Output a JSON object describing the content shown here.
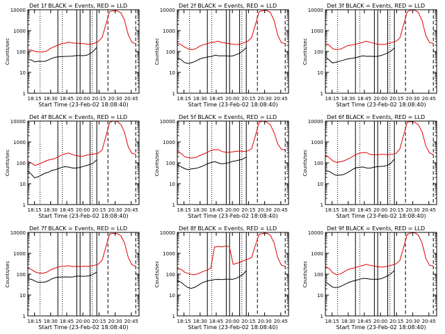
{
  "figure": {
    "start_time_label": "Start Time (23-Feb-02 18:08:40)",
    "ylabel": "Counts/sec",
    "x_ticks": [
      "18:15",
      "18:30",
      "18:45",
      "20:00",
      "20:15",
      "20:30",
      "20:45"
    ],
    "y_ticks": [
      "1",
      "10",
      "100",
      "1000",
      "10000"
    ]
  },
  "chart_data": [
    {
      "type": "line",
      "title": "Det 1f BLACK = Events, RED = LLD",
      "scale": "log",
      "ylim": [
        1,
        10000
      ],
      "series": [
        {
          "color": "#000000",
          "values": [
            40,
            38,
            30,
            34,
            35,
            36,
            40,
            45,
            50,
            55,
            60,
            62,
            60,
            58,
            60,
            62,
            65,
            70,
            80,
            100,
            150
          ]
        },
        {
          "color": "#e00000",
          "values": [
            120,
            110,
            95,
            95,
            100,
            110,
            140,
            160,
            190,
            230,
            260,
            300,
            260,
            240,
            230,
            230,
            230,
            240,
            260,
            300,
            450,
            2000,
            8500,
            9500,
            9200,
            7000,
            3000,
            600,
            280,
            250
          ]
        }
      ]
    },
    {
      "type": "line",
      "title": "Det 2f BLACK = Events, RED = LLD",
      "scale": "log",
      "ylim": [
        1,
        10000
      ],
      "series": [
        {
          "color": "#000000",
          "values": [
            45,
            40,
            30,
            28,
            30,
            33,
            38,
            45,
            50,
            58,
            62,
            68,
            60,
            58,
            60,
            62,
            65,
            72,
            80,
            100,
            150
          ]
        },
        {
          "color": "#e00000",
          "values": [
            250,
            200,
            160,
            140,
            130,
            140,
            170,
            200,
            230,
            280,
            300,
            320,
            260,
            240,
            230,
            230,
            230,
            240,
            260,
            300,
            450,
            2000,
            8500,
            9500,
            9200,
            7000,
            3000,
            600,
            280,
            250
          ]
        }
      ]
    },
    {
      "type": "line",
      "title": "Det 3f BLACK = Events, RED = LLD",
      "scale": "log",
      "ylim": [
        1,
        10000
      ],
      "series": [
        {
          "color": "#000000",
          "values": [
            50,
            40,
            30,
            32,
            34,
            36,
            40,
            45,
            50,
            55,
            60,
            60,
            55,
            58,
            60,
            62,
            65,
            70,
            80,
            100,
            150
          ]
        },
        {
          "color": "#e00000",
          "values": [
            240,
            200,
            140,
            130,
            130,
            150,
            180,
            200,
            230,
            260,
            280,
            300,
            260,
            240,
            230,
            230,
            230,
            240,
            260,
            300,
            450,
            2000,
            8500,
            9500,
            9200,
            7000,
            3000,
            600,
            280,
            250
          ]
        }
      ]
    },
    {
      "type": "line",
      "title": "Det 4f BLACK = Events, RED = LLD",
      "scale": "log",
      "ylim": [
        1,
        10000
      ],
      "series": [
        {
          "color": "#000000",
          "values": [
            40,
            30,
            20,
            22,
            25,
            30,
            35,
            45,
            50,
            55,
            60,
            62,
            60,
            58,
            60,
            62,
            65,
            70,
            80,
            100,
            150
          ]
        },
        {
          "color": "#e00000",
          "values": [
            120,
            100,
            80,
            90,
            100,
            120,
            140,
            160,
            200,
            240,
            260,
            280,
            240,
            230,
            220,
            220,
            230,
            240,
            260,
            300,
            450,
            2000,
            8500,
            9500,
            9200,
            7000,
            3000,
            600,
            280,
            250
          ]
        }
      ]
    },
    {
      "type": "line",
      "title": "Det 5f BLACK = Events, RED = LLD",
      "scale": "log",
      "ylim": [
        1,
        10000
      ],
      "series": [
        {
          "color": "#000000",
          "values": [
            80,
            70,
            55,
            45,
            48,
            52,
            60,
            70,
            80,
            90,
            100,
            110,
            100,
            95,
            98,
            100,
            110,
            120,
            140,
            160,
            200
          ]
        },
        {
          "color": "#e00000",
          "values": [
            400,
            300,
            200,
            170,
            160,
            180,
            230,
            280,
            320,
            380,
            400,
            420,
            360,
            340,
            330,
            330,
            340,
            350,
            360,
            400,
            500,
            2000,
            8500,
            9500,
            9200,
            7000,
            3000,
            800,
            420,
            400
          ]
        }
      ]
    },
    {
      "type": "line",
      "title": "Det 6f BLACK = Events, RED = LLD",
      "scale": "log",
      "ylim": [
        1,
        10000
      ],
      "series": [
        {
          "color": "#000000",
          "values": [
            45,
            40,
            30,
            24,
            25,
            28,
            33,
            40,
            48,
            55,
            60,
            65,
            60,
            58,
            60,
            62,
            65,
            70,
            80,
            100,
            150
          ]
        },
        {
          "color": "#e00000",
          "values": [
            250,
            180,
            120,
            100,
            110,
            130,
            160,
            190,
            230,
            270,
            300,
            320,
            270,
            250,
            240,
            240,
            240,
            250,
            270,
            300,
            450,
            2000,
            8500,
            9500,
            9200,
            7000,
            3000,
            600,
            280,
            250
          ]
        }
      ]
    },
    {
      "type": "line",
      "title": "Det 7f BLACK = Events, RED = LLD",
      "scale": "log",
      "ylim": [
        1,
        10000
      ],
      "series": [
        {
          "color": "#000000",
          "values": [
            60,
            55,
            45,
            40,
            42,
            45,
            50,
            58,
            65,
            70,
            75,
            78,
            75,
            72,
            75,
            78,
            80,
            85,
            90,
            100,
            120
          ]
        },
        {
          "color": "#e00000",
          "values": [
            200,
            160,
            120,
            110,
            115,
            130,
            160,
            180,
            200,
            230,
            250,
            270,
            240,
            230,
            220,
            230,
            240,
            260,
            280,
            300,
            450,
            2000,
            8500,
            9500,
            9200,
            7000,
            3000,
            600,
            280,
            250
          ]
        }
      ]
    },
    {
      "type": "line",
      "title": "Det 8f BLACK = Events, RED = LLD",
      "scale": "log",
      "ylim": [
        1,
        10000
      ],
      "series": [
        {
          "color": "#000000",
          "values": [
            45,
            40,
            30,
            24,
            22,
            24,
            28,
            35,
            42,
            50,
            55,
            58,
            55,
            52,
            55,
            58,
            60,
            65,
            75,
            90,
            140
          ]
        },
        {
          "color": "#e00000",
          "values": [
            170,
            160,
            120,
            110,
            100,
            100,
            110,
            130,
            150,
            200,
            2100,
            2200,
            2000,
            2100,
            2000,
            300,
            350,
            400,
            450,
            500,
            600,
            2500,
            8500,
            9500,
            9200,
            7000,
            3000,
            600,
            280,
            250
          ]
        }
      ]
    },
    {
      "type": "line",
      "title": "Det 9f BLACK = Events, RED = LLD",
      "scale": "log",
      "ylim": [
        1,
        10000
      ],
      "series": [
        {
          "color": "#000000",
          "values": [
            40,
            32,
            25,
            24,
            25,
            28,
            33,
            40,
            48,
            55,
            60,
            62,
            58,
            55,
            58,
            60,
            62,
            68,
            78,
            100,
            150
          ]
        },
        {
          "color": "#e00000",
          "values": [
            220,
            180,
            120,
            100,
            105,
            125,
            155,
            180,
            210,
            250,
            270,
            290,
            250,
            240,
            230,
            230,
            235,
            245,
            260,
            300,
            450,
            2000,
            8500,
            9500,
            9200,
            7000,
            3000,
            600,
            280,
            250
          ]
        }
      ]
    }
  ]
}
